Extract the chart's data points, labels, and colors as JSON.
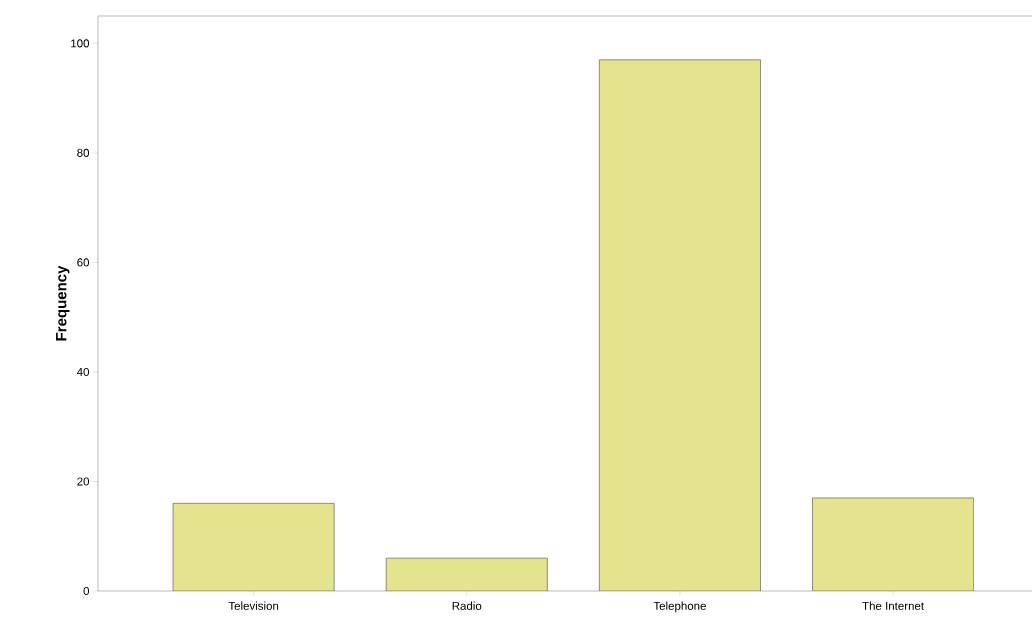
{
  "chart_data": {
    "type": "bar",
    "ylabel": "Frequency",
    "categories": [
      "Television",
      "Radio",
      "Telephone",
      "The Internet"
    ],
    "values": [
      16,
      6,
      97,
      17
    ],
    "color": "#e4e48e",
    "ylim": [
      0,
      105
    ],
    "yticks": [
      0,
      20,
      40,
      60,
      80,
      100
    ],
    "grid": false
  }
}
